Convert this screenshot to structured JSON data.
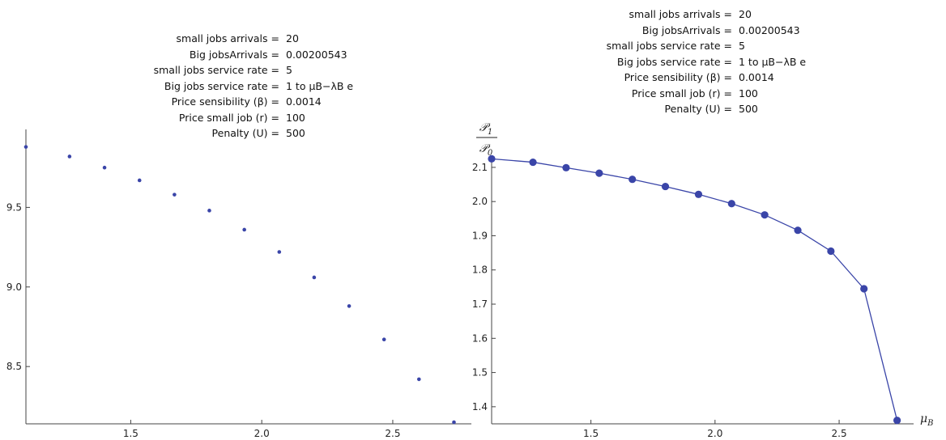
{
  "params_left": [
    {
      "key": "small jobs arrivals =",
      "value": "20"
    },
    {
      "key": "Big jobsArrivals =",
      "value": "0.00200543"
    },
    {
      "key": "small jobs service rate =",
      "value": "5"
    },
    {
      "key": "Big jobs service rate =",
      "value": "1 to μB−λB e"
    },
    {
      "key": "Price sensibility (β) =",
      "value": "0.0014"
    },
    {
      "key": "Price small job (r) =",
      "value": "100"
    },
    {
      "key": "Penalty (U) =",
      "value": "500"
    }
  ],
  "params_right": [
    {
      "key": "small jobs arrivals =",
      "value": "20"
    },
    {
      "key": "Big jobsArrivals =",
      "value": "0.00200543"
    },
    {
      "key": "small jobs service rate =",
      "value": "5"
    },
    {
      "key": "Big jobs service rate =",
      "value": "1 to μB−λB e"
    },
    {
      "key": "Price sensibility (β) =",
      "value": "0.0014"
    },
    {
      "key": "Price small job (r) =",
      "value": "100"
    },
    {
      "key": "Penalty (U) =",
      "value": "500"
    }
  ],
  "chart_data": [
    {
      "type": "scatter",
      "title": "",
      "xlabel": "",
      "ylabel": "",
      "xlim": [
        1.1,
        2.8
      ],
      "ylim": [
        8.14,
        9.99
      ],
      "x_ticks": [
        1.5,
        2.0,
        2.5
      ],
      "y_ticks": [
        8.5,
        9.0,
        9.5
      ],
      "x_tick_labels": [
        "1.5",
        "2.0",
        "2.5"
      ],
      "y_tick_labels": [
        "8.5",
        "9.0",
        "9.5"
      ],
      "color": "#3a45a8",
      "x": [
        1.1,
        1.2665,
        1.4,
        1.5335,
        1.6668,
        1.8,
        1.9335,
        2.0668,
        2.2,
        2.3335,
        2.4668,
        2.6,
        2.7335
      ],
      "y": [
        9.88,
        9.82,
        9.75,
        9.67,
        9.58,
        9.48,
        9.36,
        9.22,
        9.06,
        8.88,
        8.67,
        8.42,
        8.15
      ]
    },
    {
      "type": "line",
      "title": "",
      "ylabel_num": "𝒫",
      "ylabel_num_sub": "1",
      "ylabel_den": "𝒫",
      "ylabel_den_sub": "0",
      "xlabel_main": "μ",
      "xlabel_sub": "B",
      "xlim": [
        1.1,
        2.8
      ],
      "ylim": [
        1.35,
        2.14
      ],
      "x_ticks": [
        1.5,
        2.0,
        2.5
      ],
      "y_ticks": [
        1.4,
        1.5,
        1.6,
        1.7,
        1.8,
        1.9,
        2.0,
        2.1
      ],
      "x_tick_labels": [
        "1.5",
        "2.0",
        "2.5"
      ],
      "y_tick_labels": [
        "1.4",
        "1.5",
        "1.6",
        "1.7",
        "1.8",
        "1.9",
        "2.0",
        "2.1"
      ],
      "color": "#3a45a8",
      "x": [
        1.1,
        1.2665,
        1.4,
        1.5335,
        1.6668,
        1.8,
        1.9335,
        2.0668,
        2.2,
        2.3335,
        2.4668,
        2.6,
        2.7335
      ],
      "y": [
        2.125,
        2.115,
        2.099,
        2.083,
        2.065,
        2.044,
        2.021,
        1.994,
        1.961,
        1.916,
        1.855,
        1.745,
        1.36
      ]
    }
  ]
}
